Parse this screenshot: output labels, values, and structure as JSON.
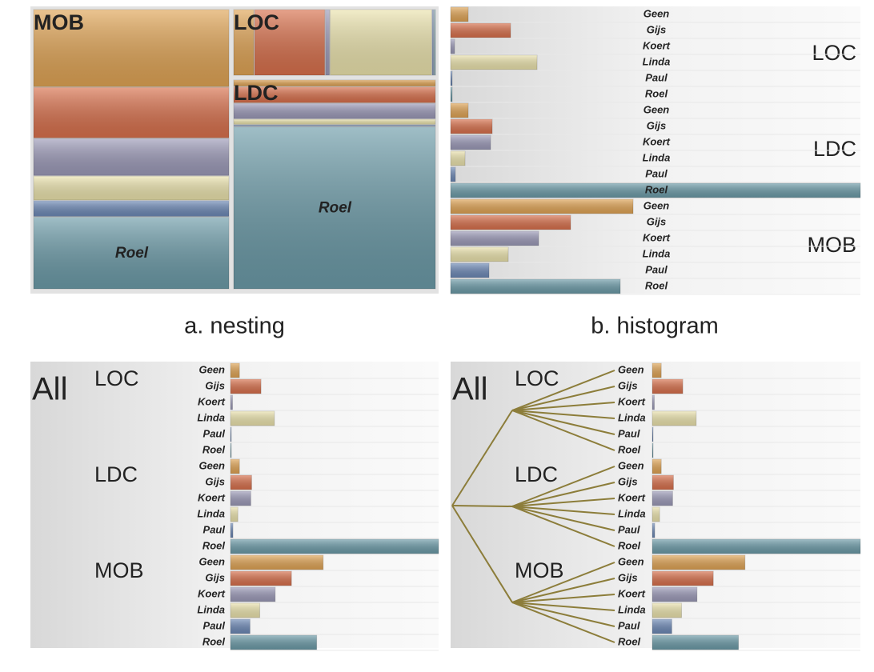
{
  "groups": [
    {
      "name": "LOC",
      "values": [
        22,
        75,
        5,
        108,
        2,
        2
      ]
    },
    {
      "name": "LDC",
      "values": [
        22,
        52,
        50,
        18,
        6,
        512
      ]
    },
    {
      "name": "MOB",
      "values": [
        228,
        150,
        110,
        72,
        48,
        212
      ]
    }
  ],
  "people": [
    {
      "name": "Geen",
      "color": "#e0a455"
    },
    {
      "name": "Gijs",
      "color": "#d8704c"
    },
    {
      "name": "Koert",
      "color": "#9c9ab8"
    },
    {
      "name": "Linda",
      "color": "#ebe3ad"
    },
    {
      "name": "Paul",
      "color": "#6d89b6"
    },
    {
      "name": "Roel",
      "color": "#6c9ba8"
    }
  ],
  "all_label": "All",
  "captions": [
    "a. nesting",
    "b. histogram"
  ]
}
